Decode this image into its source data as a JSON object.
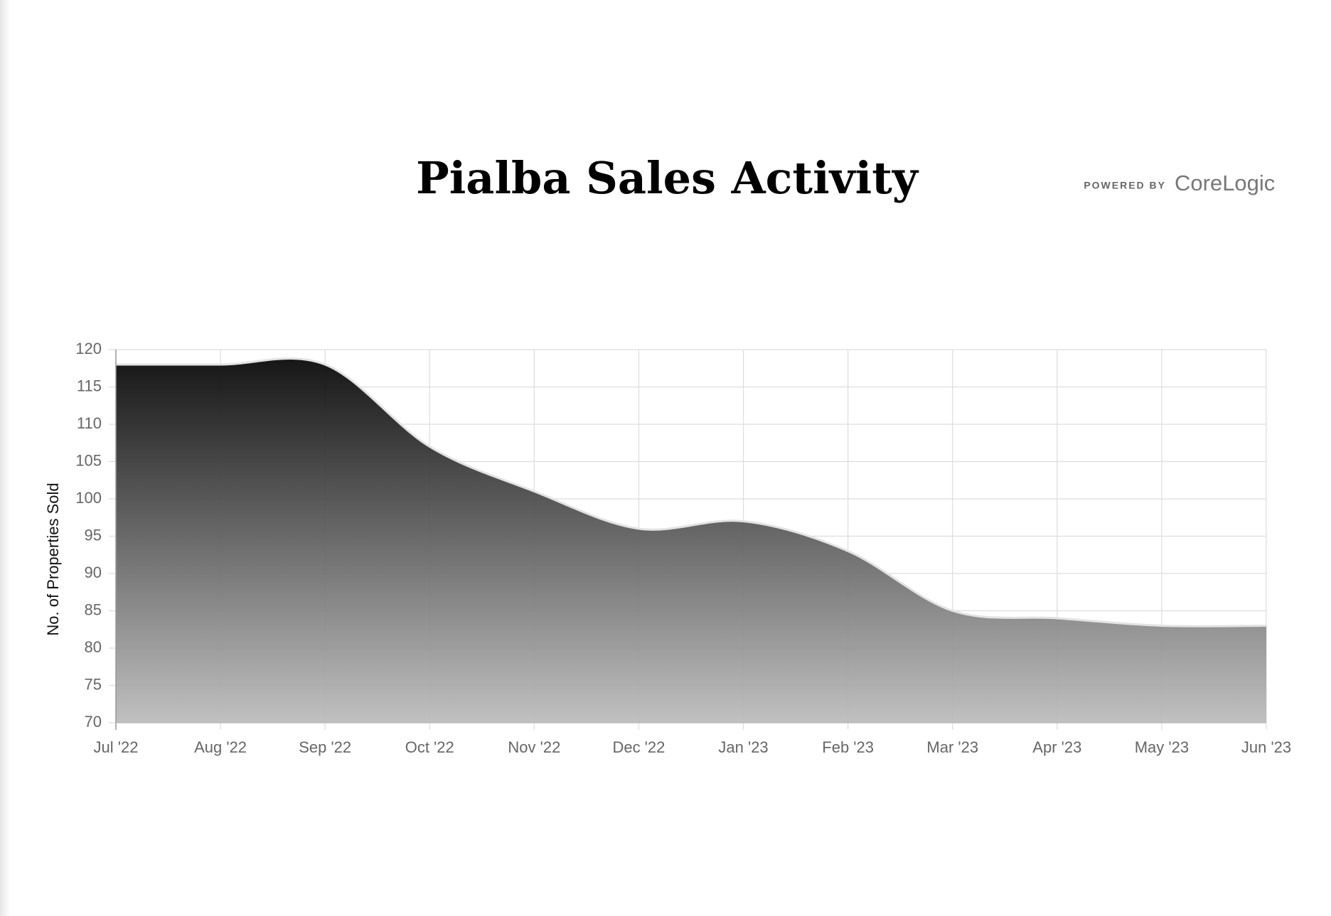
{
  "chart_data": {
    "type": "area",
    "title": "Pialba Sales Activity",
    "logo": {
      "prefix": "POWERED BY",
      "name": "CoreLogic"
    },
    "y_label": "No. of Properties Sold",
    "categories": [
      "Jul '22",
      "Aug '22",
      "Sep '22",
      "Oct '22",
      "Nov '22",
      "Dec '22",
      "Jan '23",
      "Feb '23",
      "Mar '23",
      "Apr '23",
      "May '23",
      "Jun '23"
    ],
    "values": [
      118,
      118,
      118,
      107,
      101,
      96,
      97,
      93,
      85,
      84,
      83,
      83
    ],
    "color": "#111111",
    "ylim": [
      70,
      120
    ],
    "yticks": [
      70,
      75,
      80,
      85,
      90,
      95,
      100,
      105,
      110,
      115,
      120
    ],
    "grid": true
  }
}
